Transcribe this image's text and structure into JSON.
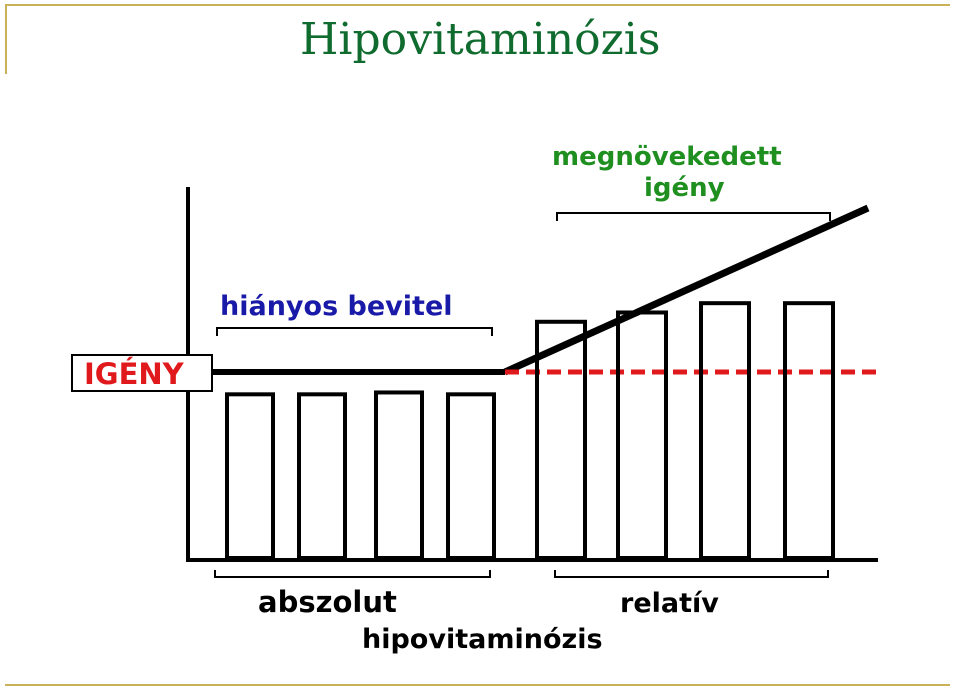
{
  "slide": {
    "title": "Hipovitaminózis"
  },
  "diagram": {
    "igeny_label": "IGÉNY",
    "hianyos_label": "hiányos bevitel",
    "megnovekedett_line1": "megnövekedett",
    "megnovekedett_line2": "igény",
    "abszolut_label": "abszolut",
    "relativ_label": "relatív",
    "bottom_label": "hipovitaminózis",
    "absolute_bar_levels": [
      0.88,
      0.88,
      0.89,
      0.88
    ],
    "relative_bar_levels": [
      1.27,
      1.32,
      1.37,
      1.37
    ],
    "colors": {
      "title": "#0f6b2e",
      "igeny": "#e0191c",
      "hianyos": "#1a1aa8",
      "megnovekedett": "#1f8f1f",
      "dashed_line": "#e0191c",
      "lines": "#000000",
      "border": "#c9b25a"
    }
  }
}
